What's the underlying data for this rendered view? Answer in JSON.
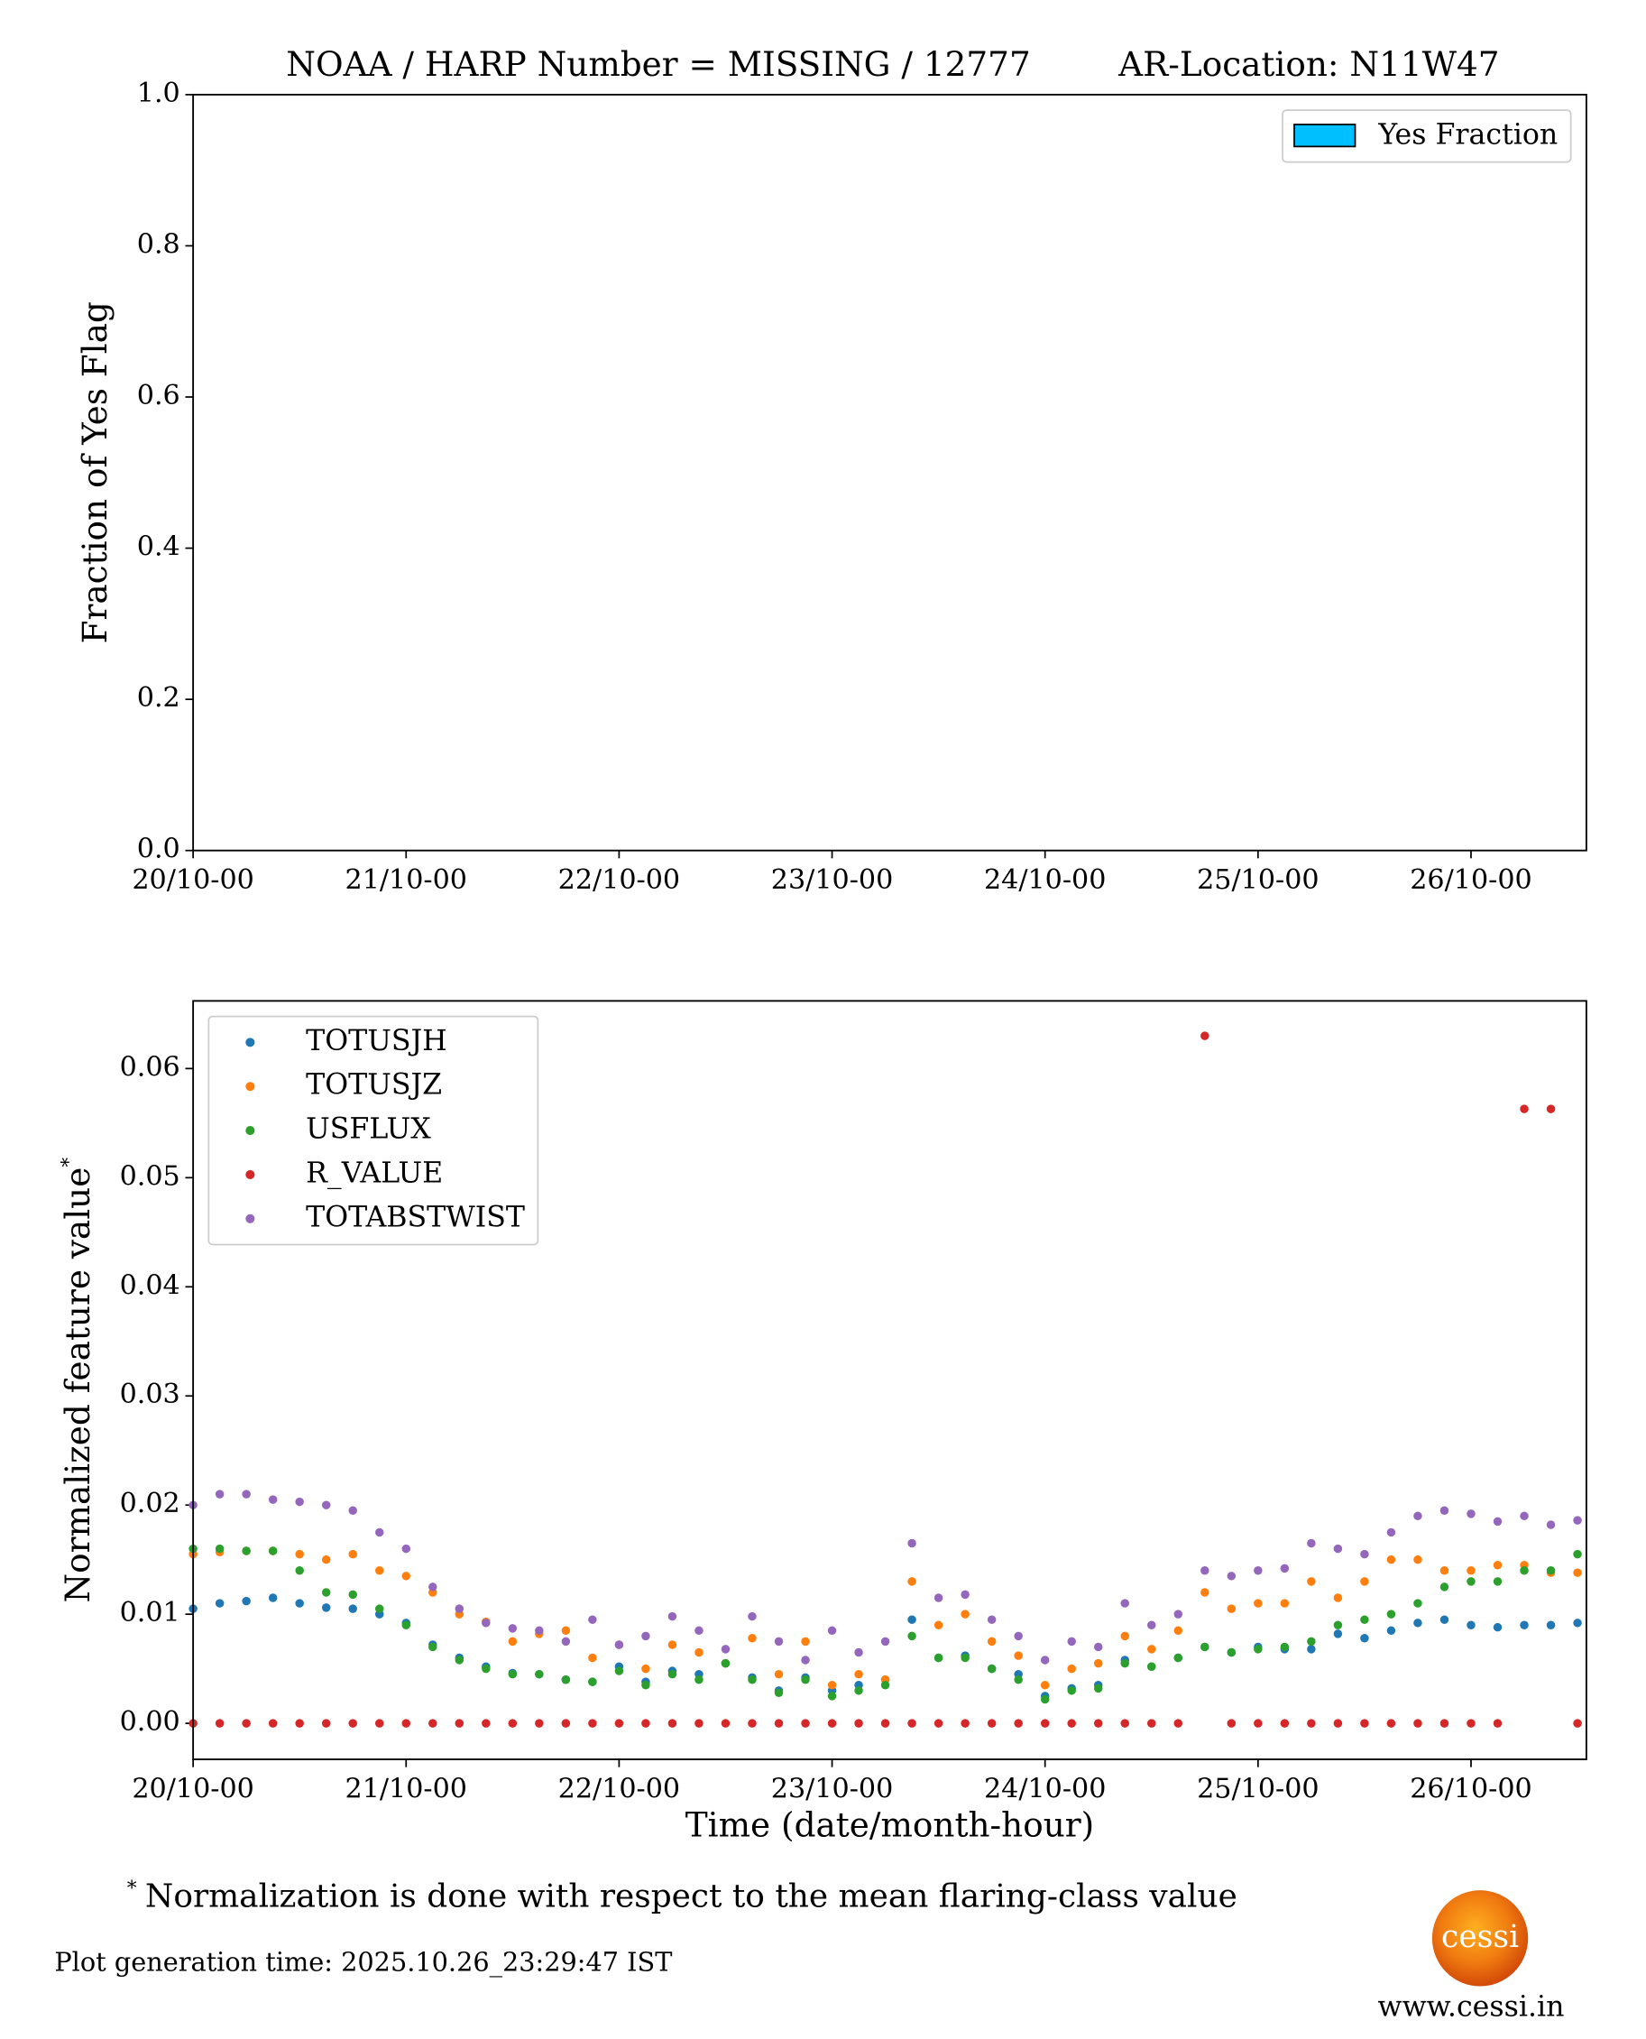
{
  "chart_data": [
    {
      "type": "bar",
      "title": "NOAA / HARP Number = MISSING / 12777",
      "title_right": "AR-Location: N11W47",
      "ylabel": "Fraction of Yes Flag",
      "x": [],
      "series": [
        {
          "name": "Yes Fraction",
          "color": "#00bfff",
          "values": []
        }
      ],
      "xlim": [
        0,
        157
      ],
      "xticks": [
        {
          "value": 0,
          "label": "20/10-00"
        },
        {
          "value": 24,
          "label": "21/10-00"
        },
        {
          "value": 48,
          "label": "22/10-00"
        },
        {
          "value": 72,
          "label": "23/10-00"
        },
        {
          "value": 96,
          "label": "24/10-00"
        },
        {
          "value": 120,
          "label": "25/10-00"
        },
        {
          "value": 144,
          "label": "26/10-00"
        }
      ],
      "ylim": [
        0,
        1
      ],
      "yticks": [
        {
          "value": 0,
          "label": "0.0"
        },
        0.2,
        0.4,
        0.6,
        0.8,
        {
          "value": 1,
          "label": "1.0"
        }
      ],
      "legend": "upper right"
    },
    {
      "type": "scatter",
      "xlabel": "Time (date/month-hour)",
      "ylabel": "Normalized feature value",
      "ylabel_mark": "*",
      "x": [
        0,
        3,
        6,
        9,
        12,
        15,
        18,
        21,
        24,
        27,
        30,
        33,
        36,
        39,
        42,
        45,
        48,
        51,
        54,
        57,
        60,
        63,
        66,
        69,
        72,
        75,
        78,
        81,
        84,
        87,
        90,
        93,
        96,
        99,
        102,
        105,
        108,
        111,
        114,
        117,
        120,
        123,
        126,
        129,
        132,
        135,
        138,
        141,
        144,
        147,
        150,
        153,
        156
      ],
      "series": [
        {
          "name": "TOTUSJH",
          "color": "#1f77b4",
          "values": [
            0.0105,
            0.011,
            0.0112,
            0.0115,
            0.011,
            0.0106,
            0.0105,
            0.01,
            0.0092,
            0.0072,
            0.006,
            0.0052,
            0.0046,
            0.0045,
            0.004,
            0.0038,
            0.0052,
            0.0038,
            0.0048,
            0.0045,
            0.0055,
            0.0042,
            0.003,
            0.0042,
            0.003,
            0.0035,
            0.004,
            0.0095,
            0.006,
            0.0062,
            0.005,
            0.0045,
            0.0025,
            0.0032,
            0.0035,
            0.0058,
            0.0052,
            0.006,
            0.007,
            0.0065,
            0.007,
            0.0068,
            0.0068,
            0.0082,
            0.0078,
            0.0085,
            0.0092,
            0.0095,
            0.009,
            0.0088,
            0.009,
            0.009,
            0.0092
          ]
        },
        {
          "name": "TOTUSJZ",
          "color": "#ff7f0e",
          "values": [
            0.0155,
            0.0157,
            0.0158,
            0.0158,
            0.0155,
            0.015,
            0.0155,
            0.014,
            0.0135,
            0.012,
            0.01,
            0.0093,
            0.0075,
            0.0082,
            0.0085,
            0.006,
            0.0072,
            0.005,
            0.0072,
            0.0065,
            0.0055,
            0.0078,
            0.0045,
            0.0075,
            0.0035,
            0.0045,
            0.004,
            0.013,
            0.009,
            0.01,
            0.0075,
            0.0062,
            0.0035,
            0.005,
            0.0055,
            0.008,
            0.0068,
            0.0085,
            0.012,
            0.0105,
            0.011,
            0.011,
            0.013,
            0.0115,
            0.013,
            0.015,
            0.015,
            0.014,
            0.014,
            0.0145,
            0.0145,
            0.0138,
            0.0138
          ]
        },
        {
          "name": "USFLUX",
          "color": "#2ca02c",
          "values": [
            0.016,
            0.016,
            0.0158,
            0.0158,
            0.014,
            0.012,
            0.0118,
            0.0105,
            0.009,
            0.007,
            0.0058,
            0.005,
            0.0045,
            0.0045,
            0.004,
            0.0038,
            0.0048,
            0.0035,
            0.0045,
            0.004,
            0.0055,
            0.004,
            0.0028,
            0.004,
            0.0025,
            0.003,
            0.0035,
            0.008,
            0.006,
            0.006,
            0.005,
            0.004,
            0.0022,
            0.003,
            0.0032,
            0.0055,
            0.0052,
            0.006,
            0.007,
            0.0065,
            0.0068,
            0.007,
            0.0075,
            0.009,
            0.0095,
            0.01,
            0.011,
            0.0125,
            0.013,
            0.013,
            0.014,
            0.014,
            0.0155
          ]
        },
        {
          "name": "R_VALUE",
          "color": "#d62728",
          "values": [
            0,
            0,
            0,
            0,
            0,
            0,
            0,
            0,
            0,
            0,
            0,
            0,
            0,
            0,
            0,
            0,
            0,
            0,
            0,
            0,
            0,
            0,
            0,
            0,
            0,
            0,
            0,
            0,
            0,
            0,
            0,
            0,
            0,
            0,
            0,
            0,
            0,
            0,
            0.063,
            0,
            0,
            0,
            0,
            0,
            0,
            0,
            0,
            0,
            0,
            0,
            0.0563,
            0.0563,
            0
          ]
        },
        {
          "name": "TOTABSTWIST",
          "color": "#9467bd",
          "values": [
            0.02,
            0.021,
            0.021,
            0.0205,
            0.0203,
            0.02,
            0.0195,
            0.0175,
            0.016,
            0.0125,
            0.0105,
            0.0092,
            0.0087,
            0.0085,
            0.0075,
            0.0095,
            0.0072,
            0.008,
            0.0098,
            0.0085,
            0.0068,
            0.0098,
            0.0075,
            0.0058,
            0.0085,
            0.0065,
            0.0075,
            0.0165,
            0.0115,
            0.0118,
            0.0095,
            0.008,
            0.0058,
            0.0075,
            0.007,
            0.011,
            0.009,
            0.01,
            0.014,
            0.0135,
            0.014,
            0.0142,
            0.0165,
            0.016,
            0.0155,
            0.0175,
            0.019,
            0.0195,
            0.0192,
            0.0185,
            0.019,
            0.0182,
            0.0186
          ]
        }
      ],
      "xlim": [
        0,
        157
      ],
      "xticks": [
        {
          "value": 0,
          "label": "20/10-00"
        },
        {
          "value": 24,
          "label": "21/10-00"
        },
        {
          "value": 48,
          "label": "22/10-00"
        },
        {
          "value": 72,
          "label": "23/10-00"
        },
        {
          "value": 96,
          "label": "24/10-00"
        },
        {
          "value": 120,
          "label": "25/10-00"
        },
        {
          "value": 144,
          "label": "26/10-00"
        }
      ],
      "ylim": [
        -0.0033,
        0.0662
      ],
      "yticks": [
        {
          "value": 0,
          "label": "0.00"
        },
        0.01,
        0.02,
        0.03,
        0.04,
        0.05,
        0.06
      ],
      "legend": "upper left"
    }
  ],
  "footnote_mark": "*",
  "footnote": "Normalization is done with respect to the mean flaring-class value",
  "generation_time": "Plot generation time: 2025.10.26_23:29:47 IST",
  "logo": "cessi",
  "website": "www.cessi.in"
}
